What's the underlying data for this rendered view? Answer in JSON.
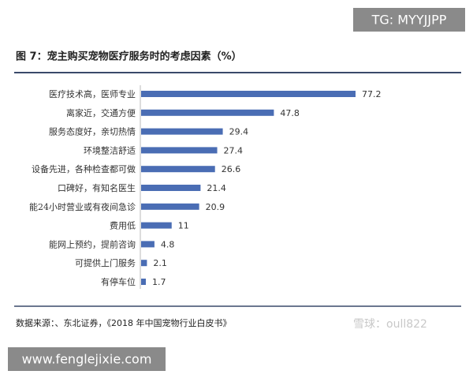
{
  "chart_data": {
    "type": "bar",
    "orientation": "horizontal",
    "title": "图 7：宠主购买宠物医疗服务时的考虑因素（%）",
    "categories": [
      "医疗技术高，医师专业",
      "离家近，交通方便",
      "服务态度好，亲切热情",
      "环境整洁舒适",
      "设备先进，各种检查都可做",
      "口碑好，有知名医生",
      "能24小时营业或有夜间急诊",
      "费用低",
      "能网上预约，提前咨询",
      "可提供上门服务",
      "有停车位"
    ],
    "values": [
      77.2,
      47.8,
      29.4,
      27.4,
      26.6,
      21.4,
      20.9,
      11,
      4.8,
      2.1,
      1.7
    ],
    "color": "#4a6db4",
    "source": "数据来源：、东北证券，《2018 年中国宠物行业白皮书》"
  },
  "watermarks": {
    "top": "TG: MYYJJPP",
    "bottom": "www.fenglejixie.com",
    "xueqiu": "雪球：oull822"
  }
}
